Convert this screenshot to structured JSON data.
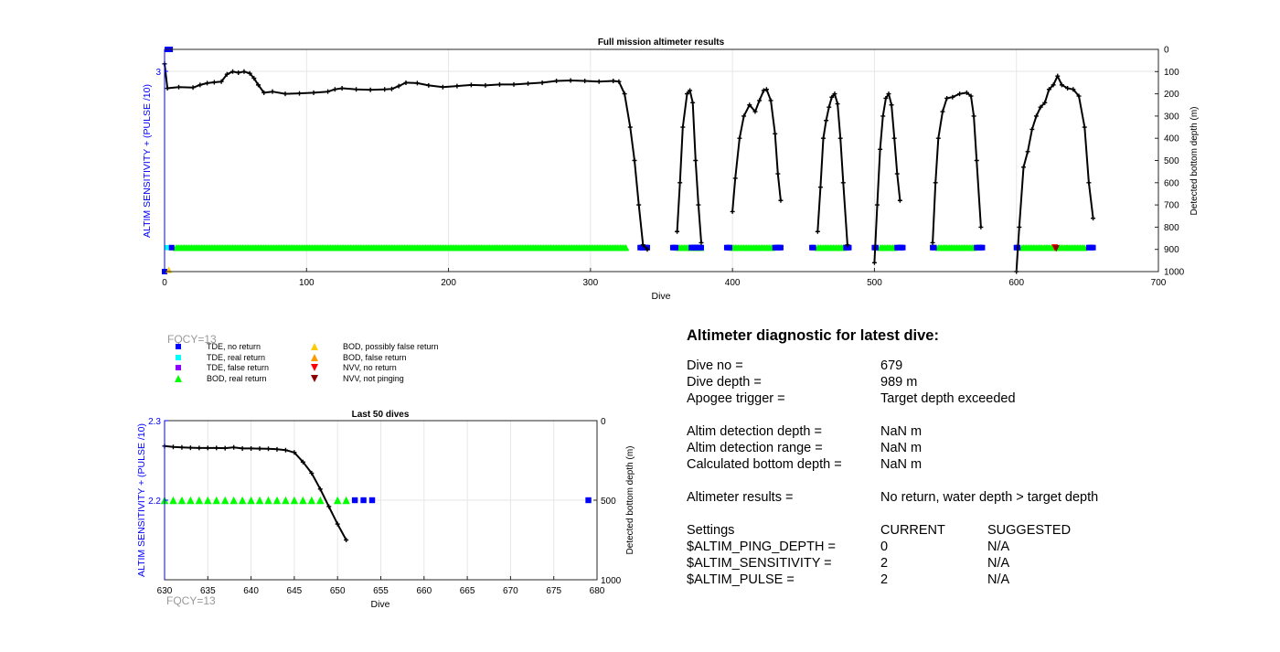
{
  "top_chart": {
    "title": "Full mission altimeter results",
    "xlabel": "Dive",
    "ylabel_left": "ALTIM SENSITIVITY + (PULSE /10)",
    "ylabel_right": "Detected bottom depth (m)",
    "x_ticks": [
      "0",
      "100",
      "200",
      "300",
      "400",
      "500",
      "600",
      "700"
    ],
    "left_tick": "3",
    "right_ticks": [
      "0",
      "100",
      "200",
      "300",
      "400",
      "500",
      "600",
      "700",
      "800",
      "900",
      "1000"
    ]
  },
  "bottom_chart": {
    "title": "Last 50 dives",
    "xlabel": "Dive",
    "ylabel_left": "ALTIM SENSITIVITY + (PULSE /10)",
    "ylabel_right": "Detected bottom depth (m)",
    "x_ticks": [
      "630",
      "635",
      "640",
      "645",
      "650",
      "655",
      "660",
      "665",
      "670",
      "675",
      "680"
    ],
    "left_ticks": [
      "2.3",
      "2.2"
    ],
    "right_ticks": [
      "0",
      "500",
      "1000"
    ],
    "fqcy": "FQCY=13"
  },
  "legend": {
    "fqcy": "FQCY=13",
    "items": [
      {
        "label": "TDE, no return",
        "shape": "square",
        "color": "#0000ff"
      },
      {
        "label": "TDE, real return",
        "shape": "square",
        "color": "#00ffff"
      },
      {
        "label": "TDE, false return",
        "shape": "square",
        "color": "#8b00ff"
      },
      {
        "label": "BOD, real return",
        "shape": "triangle-up",
        "color": "#00ff00"
      },
      {
        "label": "BOD, possibly false return",
        "shape": "triangle-up",
        "color": "#ffcc00"
      },
      {
        "label": "BOD, false return",
        "shape": "triangle-up",
        "color": "#ff9900"
      },
      {
        "label": "NVV, no return",
        "shape": "triangle-down",
        "color": "#ff0000"
      },
      {
        "label": "NVV, not pinging",
        "shape": "triangle-down",
        "color": "#8b0000"
      }
    ]
  },
  "diagnostic": {
    "title": "Altimeter diagnostic for latest dive:",
    "dive_no": {
      "label": "Dive no =",
      "value": "679"
    },
    "dive_depth": {
      "label": "Dive depth =",
      "value": "989 m"
    },
    "apogee": {
      "label": "Apogee trigger =",
      "value": "Target depth exceeded"
    },
    "det_depth": {
      "label": "Altim detection depth =",
      "value": "NaN m"
    },
    "det_range": {
      "label": "Altim detection range =",
      "value": "NaN m"
    },
    "calc_bottom": {
      "label": "Calculated bottom depth =",
      "value": "NaN m"
    },
    "results": {
      "label": "Altimeter results =",
      "value": "No return, water depth > target depth"
    },
    "settings": {
      "header": {
        "label": "Settings",
        "current": "CURRENT",
        "suggested": "SUGGESTED"
      },
      "ping_depth": {
        "label": "$ALTIM_PING_DEPTH =",
        "current": "0",
        "suggested": "N/A"
      },
      "sensitivity": {
        "label": "$ALTIM_SENSITIVITY =",
        "current": "2",
        "suggested": "N/A"
      },
      "pulse": {
        "label": "$ALTIM_PULSE =",
        "current": "2",
        "suggested": "N/A"
      }
    }
  },
  "colors": {
    "tde_no_return": "#0000ff",
    "tde_real_return": "#00ffff",
    "bod_real_return": "#00ff00",
    "bod_possibly_false": "#ffcc00",
    "nvv_no_return": "#ff0000",
    "nvv_not_pinging": "#8b0000",
    "depth_line": "#000000",
    "left_axis": "#0000ff"
  },
  "chart_data": [
    {
      "type": "line",
      "title": "Full mission altimeter results",
      "xlabel": "Dive",
      "ylabel": "ALTIM SENSITIVITY + (PULSE /10)",
      "y2label": "Detected bottom depth (m)",
      "xlim": [
        0,
        700
      ],
      "y2lim": [
        0,
        1000
      ],
      "y2_reversed": true,
      "grid": true,
      "bottom_depth_segments": [
        [
          [
            0,
            65
          ],
          [
            2,
            175
          ],
          [
            10,
            170
          ],
          [
            20,
            172
          ],
          [
            25,
            160
          ],
          [
            30,
            152
          ],
          [
            35,
            148
          ],
          [
            40,
            145
          ],
          [
            44,
            112
          ],
          [
            48,
            100
          ],
          [
            52,
            105
          ],
          [
            56,
            100
          ],
          [
            60,
            108
          ],
          [
            63,
            130
          ],
          [
            66,
            160
          ],
          [
            70,
            195
          ],
          [
            76,
            190
          ],
          [
            85,
            200
          ],
          [
            95,
            198
          ],
          [
            105,
            195
          ],
          [
            115,
            190
          ],
          [
            120,
            180
          ],
          [
            125,
            175
          ],
          [
            135,
            180
          ],
          [
            145,
            182
          ],
          [
            155,
            180
          ],
          [
            160,
            178
          ],
          [
            165,
            165
          ],
          [
            170,
            150
          ],
          [
            178,
            152
          ],
          [
            186,
            162
          ],
          [
            196,
            170
          ],
          [
            206,
            165
          ],
          [
            216,
            160
          ],
          [
            226,
            162
          ],
          [
            236,
            158
          ],
          [
            246,
            158
          ],
          [
            256,
            154
          ],
          [
            266,
            150
          ],
          [
            276,
            142
          ],
          [
            286,
            140
          ],
          [
            296,
            142
          ],
          [
            306,
            145
          ],
          [
            316,
            142
          ],
          [
            320,
            145
          ],
          [
            324,
            200
          ],
          [
            328,
            350
          ],
          [
            331,
            500
          ],
          [
            334,
            700
          ],
          [
            337,
            880
          ],
          [
            340,
            900
          ]
        ],
        [
          [
            361,
            820
          ],
          [
            363,
            600
          ],
          [
            365,
            350
          ],
          [
            368,
            200
          ],
          [
            370,
            185
          ],
          [
            372,
            240
          ],
          [
            374,
            500
          ],
          [
            376,
            700
          ],
          [
            378,
            870
          ]
        ],
        [
          [
            400,
            730
          ],
          [
            402,
            580
          ],
          [
            405,
            400
          ],
          [
            408,
            300
          ],
          [
            412,
            250
          ],
          [
            416,
            280
          ],
          [
            419,
            230
          ],
          [
            422,
            185
          ],
          [
            424,
            180
          ],
          [
            427,
            230
          ],
          [
            430,
            380
          ],
          [
            432,
            560
          ],
          [
            434,
            680
          ]
        ],
        [
          [
            460,
            820
          ],
          [
            462,
            620
          ],
          [
            464,
            400
          ],
          [
            466,
            320
          ],
          [
            468,
            260
          ],
          [
            470,
            215
          ],
          [
            472,
            200
          ],
          [
            474,
            245
          ],
          [
            476,
            400
          ],
          [
            478,
            600
          ],
          [
            481,
            880
          ]
        ],
        [
          [
            500,
            960
          ],
          [
            502,
            700
          ],
          [
            504,
            450
          ],
          [
            506,
            300
          ],
          [
            508,
            220
          ],
          [
            510,
            200
          ],
          [
            512,
            250
          ],
          [
            514,
            400
          ],
          [
            516,
            560
          ],
          [
            518,
            680
          ]
        ],
        [
          [
            541,
            870
          ],
          [
            543,
            600
          ],
          [
            545,
            400
          ],
          [
            548,
            280
          ],
          [
            551,
            220
          ],
          [
            555,
            215
          ],
          [
            560,
            200
          ],
          [
            565,
            195
          ],
          [
            568,
            210
          ],
          [
            570,
            300
          ],
          [
            572,
            500
          ],
          [
            575,
            800
          ]
        ],
        [
          [
            600,
            1000
          ],
          [
            602,
            800
          ],
          [
            605,
            530
          ],
          [
            608,
            460
          ],
          [
            611,
            360
          ],
          [
            614,
            300
          ],
          [
            617,
            260
          ],
          [
            620,
            240
          ],
          [
            623,
            180
          ],
          [
            626,
            160
          ],
          [
            629,
            120
          ],
          [
            632,
            160
          ],
          [
            636,
            175
          ],
          [
            640,
            180
          ],
          [
            644,
            210
          ],
          [
            648,
            350
          ],
          [
            651,
            600
          ],
          [
            654,
            760
          ]
        ]
      ],
      "tde_no_return_depths": [
        5,
        335,
        336,
        337,
        338,
        339,
        340,
        358,
        359,
        360,
        371,
        372,
        373,
        374,
        375,
        376,
        377,
        378,
        396,
        397,
        398,
        430,
        431,
        432,
        433,
        434,
        456,
        457,
        480,
        481,
        482,
        500,
        501,
        516,
        517,
        518,
        519,
        520,
        541,
        542,
        572,
        573,
        574,
        575,
        576,
        600,
        601,
        651,
        652,
        653,
        654
      ],
      "tde_real_return_dives": [
        2,
        3,
        4
      ],
      "bod_real_return_ranges": [
        [
          8,
          325
        ],
        [
          362,
          378
        ],
        [
          400,
          428
        ],
        [
          460,
          478
        ],
        [
          504,
          514
        ],
        [
          545,
          570
        ],
        [
          604,
          648
        ]
      ],
      "nvv_no_return_dives": [
        627
      ],
      "nvv_not_pinging_dives": [
        628
      ],
      "bod_possibly_false_dives": [
        2
      ]
    },
    {
      "type": "line",
      "title": "Last 50 dives",
      "xlabel": "Dive",
      "ylabel": "ALTIM SENSITIVITY + (PULSE /10)",
      "y2label": "Detected bottom depth (m)",
      "xlim": [
        630,
        680
      ],
      "ylim": [
        2.1,
        2.3
      ],
      "y2lim": [
        0,
        1000
      ],
      "y2_reversed": true,
      "grid": true,
      "bottom_depth": {
        "x": [
          630,
          631,
          632,
          633,
          634,
          635,
          636,
          637,
          638,
          639,
          640,
          641,
          642,
          643,
          644,
          645,
          646,
          647,
          648,
          649,
          650,
          651
        ],
        "y": [
          160,
          165,
          168,
          170,
          172,
          172,
          172,
          173,
          168,
          175,
          175,
          176,
          177,
          180,
          185,
          200,
          260,
          330,
          430,
          540,
          650,
          750
        ]
      },
      "bod_real_return": {
        "x": [
          630,
          631,
          632,
          633,
          634,
          635,
          636,
          637,
          638,
          639,
          640,
          641,
          642,
          643,
          644,
          645,
          646,
          647,
          648,
          650,
          651
        ],
        "y": 2.2
      },
      "tde_no_return": {
        "x": [
          652,
          653,
          654,
          679
        ],
        "y": 2.2
      }
    }
  ]
}
